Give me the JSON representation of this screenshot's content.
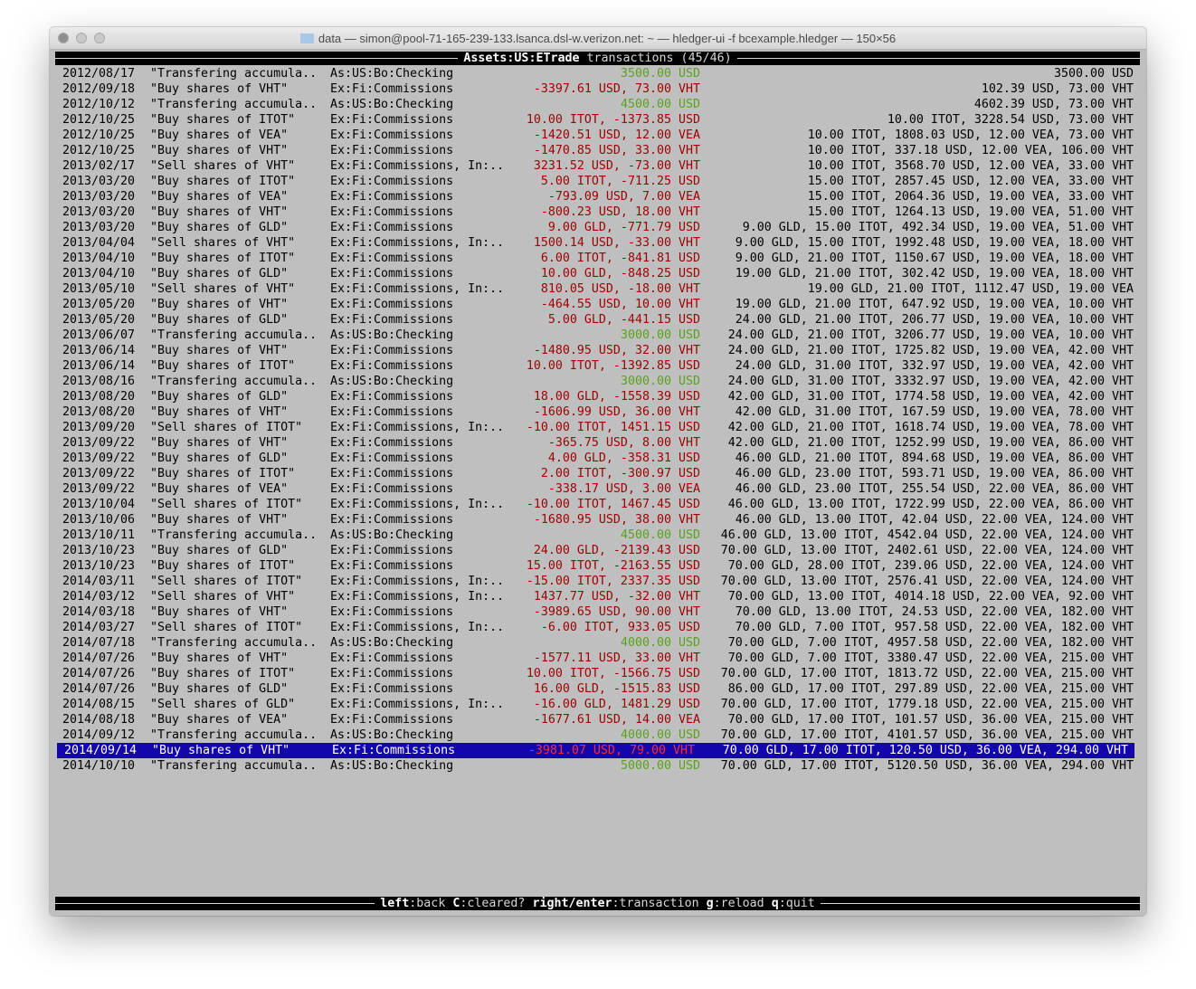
{
  "window": {
    "title": "data — simon@pool-71-165-239-133.lsanca.dsl-w.verizon.net: ~ — hledger-ui -f bcexample.hledger — 150×56",
    "folder_icon": "folder-icon"
  },
  "header": {
    "account": "Assets:US:ETrade",
    "suffix": " transactions (45/46)"
  },
  "colors": {
    "background": "#bfbfbf",
    "increase": "#5aa31c",
    "decrease": "#9e0000",
    "selection": "#1406ad"
  },
  "selected_index": 44,
  "rows": [
    {
      "date": "2012/08/17",
      "desc": "\"Transfering accumula..",
      "account": "As:US:Bo:Checking",
      "amount": "3500.00 USD",
      "sign": "pos",
      "balance": "3500.00 USD"
    },
    {
      "date": "2012/09/18",
      "desc": "\"Buy shares of VHT\"",
      "account": "Ex:Fi:Commissions",
      "amount": "-3397.61 USD, 73.00 VHT",
      "sign": "neg",
      "balance": "102.39 USD, 73.00 VHT"
    },
    {
      "date": "2012/10/12",
      "desc": "\"Transfering accumula..",
      "account": "As:US:Bo:Checking",
      "amount": "4500.00 USD",
      "sign": "pos",
      "balance": "4602.39 USD, 73.00 VHT"
    },
    {
      "date": "2012/10/25",
      "desc": "\"Buy shares of ITOT\"",
      "account": "Ex:Fi:Commissions",
      "amount": "10.00 ITOT, -1373.85 USD",
      "sign": "neg",
      "balance": "10.00 ITOT, 3228.54 USD, 73.00 VHT"
    },
    {
      "date": "2012/10/25",
      "desc": "\"Buy shares of VEA\"",
      "account": "Ex:Fi:Commissions",
      "amount": "-1420.51 USD, 12.00 VEA",
      "sign": "neg",
      "balance": "10.00 ITOT, 1808.03 USD, 12.00 VEA, 73.00 VHT"
    },
    {
      "date": "2012/10/25",
      "desc": "\"Buy shares of VHT\"",
      "account": "Ex:Fi:Commissions",
      "amount": "-1470.85 USD, 33.00 VHT",
      "sign": "neg",
      "balance": "10.00 ITOT, 337.18 USD, 12.00 VEA, 106.00 VHT"
    },
    {
      "date": "2013/02/17",
      "desc": "\"Sell shares of VHT\"",
      "account": "Ex:Fi:Commissions, In:..",
      "amount": "3231.52 USD, -73.00 VHT",
      "sign": "neg",
      "balance": "10.00 ITOT, 3568.70 USD, 12.00 VEA, 33.00 VHT"
    },
    {
      "date": "2013/03/20",
      "desc": "\"Buy shares of ITOT\"",
      "account": "Ex:Fi:Commissions",
      "amount": "5.00 ITOT, -711.25 USD",
      "sign": "neg",
      "balance": "15.00 ITOT, 2857.45 USD, 12.00 VEA, 33.00 VHT"
    },
    {
      "date": "2013/03/20",
      "desc": "\"Buy shares of VEA\"",
      "account": "Ex:Fi:Commissions",
      "amount": "-793.09 USD, 7.00 VEA",
      "sign": "neg",
      "balance": "15.00 ITOT, 2064.36 USD, 19.00 VEA, 33.00 VHT"
    },
    {
      "date": "2013/03/20",
      "desc": "\"Buy shares of VHT\"",
      "account": "Ex:Fi:Commissions",
      "amount": "-800.23 USD, 18.00 VHT",
      "sign": "neg",
      "balance": "15.00 ITOT, 1264.13 USD, 19.00 VEA, 51.00 VHT"
    },
    {
      "date": "2013/03/20",
      "desc": "\"Buy shares of GLD\"",
      "account": "Ex:Fi:Commissions",
      "amount": "9.00 GLD, -771.79 USD",
      "sign": "neg",
      "balance": "9.00 GLD, 15.00 ITOT, 492.34 USD, 19.00 VEA, 51.00 VHT"
    },
    {
      "date": "2013/04/04",
      "desc": "\"Sell shares of VHT\"",
      "account": "Ex:Fi:Commissions, In:..",
      "amount": "1500.14 USD, -33.00 VHT",
      "sign": "neg",
      "balance": "9.00 GLD, 15.00 ITOT, 1992.48 USD, 19.00 VEA, 18.00 VHT"
    },
    {
      "date": "2013/04/10",
      "desc": "\"Buy shares of ITOT\"",
      "account": "Ex:Fi:Commissions",
      "amount": "6.00 ITOT, -841.81 USD",
      "sign": "neg",
      "balance": "9.00 GLD, 21.00 ITOT, 1150.67 USD, 19.00 VEA, 18.00 VHT"
    },
    {
      "date": "2013/04/10",
      "desc": "\"Buy shares of GLD\"",
      "account": "Ex:Fi:Commissions",
      "amount": "10.00 GLD, -848.25 USD",
      "sign": "neg",
      "balance": "19.00 GLD, 21.00 ITOT, 302.42 USD, 19.00 VEA, 18.00 VHT"
    },
    {
      "date": "2013/05/10",
      "desc": "\"Sell shares of VHT\"",
      "account": "Ex:Fi:Commissions, In:..",
      "amount": "810.05 USD, -18.00 VHT",
      "sign": "neg",
      "balance": "19.00 GLD, 21.00 ITOT, 1112.47 USD, 19.00 VEA"
    },
    {
      "date": "2013/05/20",
      "desc": "\"Buy shares of VHT\"",
      "account": "Ex:Fi:Commissions",
      "amount": "-464.55 USD, 10.00 VHT",
      "sign": "neg",
      "balance": "19.00 GLD, 21.00 ITOT, 647.92 USD, 19.00 VEA, 10.00 VHT"
    },
    {
      "date": "2013/05/20",
      "desc": "\"Buy shares of GLD\"",
      "account": "Ex:Fi:Commissions",
      "amount": "5.00 GLD, -441.15 USD",
      "sign": "neg",
      "balance": "24.00 GLD, 21.00 ITOT, 206.77 USD, 19.00 VEA, 10.00 VHT"
    },
    {
      "date": "2013/06/07",
      "desc": "\"Transfering accumula..",
      "account": "As:US:Bo:Checking",
      "amount": "3000.00 USD",
      "sign": "pos",
      "balance": "24.00 GLD, 21.00 ITOT, 3206.77 USD, 19.00 VEA, 10.00 VHT"
    },
    {
      "date": "2013/06/14",
      "desc": "\"Buy shares of VHT\"",
      "account": "Ex:Fi:Commissions",
      "amount": "-1480.95 USD, 32.00 VHT",
      "sign": "neg",
      "balance": "24.00 GLD, 21.00 ITOT, 1725.82 USD, 19.00 VEA, 42.00 VHT"
    },
    {
      "date": "2013/06/14",
      "desc": "\"Buy shares of ITOT\"",
      "account": "Ex:Fi:Commissions",
      "amount": "10.00 ITOT, -1392.85 USD",
      "sign": "neg",
      "balance": "24.00 GLD, 31.00 ITOT, 332.97 USD, 19.00 VEA, 42.00 VHT"
    },
    {
      "date": "2013/08/16",
      "desc": "\"Transfering accumula..",
      "account": "As:US:Bo:Checking",
      "amount": "3000.00 USD",
      "sign": "pos",
      "balance": "24.00 GLD, 31.00 ITOT, 3332.97 USD, 19.00 VEA, 42.00 VHT"
    },
    {
      "date": "2013/08/20",
      "desc": "\"Buy shares of GLD\"",
      "account": "Ex:Fi:Commissions",
      "amount": "18.00 GLD, -1558.39 USD",
      "sign": "neg",
      "balance": "42.00 GLD, 31.00 ITOT, 1774.58 USD, 19.00 VEA, 42.00 VHT"
    },
    {
      "date": "2013/08/20",
      "desc": "\"Buy shares of VHT\"",
      "account": "Ex:Fi:Commissions",
      "amount": "-1606.99 USD, 36.00 VHT",
      "sign": "neg",
      "balance": "42.00 GLD, 31.00 ITOT, 167.59 USD, 19.00 VEA, 78.00 VHT"
    },
    {
      "date": "2013/09/20",
      "desc": "\"Sell shares of ITOT\"",
      "account": "Ex:Fi:Commissions, In:..",
      "amount": "-10.00 ITOT, 1451.15 USD",
      "sign": "neg",
      "balance": "42.00 GLD, 21.00 ITOT, 1618.74 USD, 19.00 VEA, 78.00 VHT"
    },
    {
      "date": "2013/09/22",
      "desc": "\"Buy shares of VHT\"",
      "account": "Ex:Fi:Commissions",
      "amount": "-365.75 USD, 8.00 VHT",
      "sign": "neg",
      "balance": "42.00 GLD, 21.00 ITOT, 1252.99 USD, 19.00 VEA, 86.00 VHT"
    },
    {
      "date": "2013/09/22",
      "desc": "\"Buy shares of GLD\"",
      "account": "Ex:Fi:Commissions",
      "amount": "4.00 GLD, -358.31 USD",
      "sign": "neg",
      "balance": "46.00 GLD, 21.00 ITOT, 894.68 USD, 19.00 VEA, 86.00 VHT"
    },
    {
      "date": "2013/09/22",
      "desc": "\"Buy shares of ITOT\"",
      "account": "Ex:Fi:Commissions",
      "amount": "2.00 ITOT, -300.97 USD",
      "sign": "neg",
      "balance": "46.00 GLD, 23.00 ITOT, 593.71 USD, 19.00 VEA, 86.00 VHT"
    },
    {
      "date": "2013/09/22",
      "desc": "\"Buy shares of VEA\"",
      "account": "Ex:Fi:Commissions",
      "amount": "-338.17 USD, 3.00 VEA",
      "sign": "neg",
      "balance": "46.00 GLD, 23.00 ITOT, 255.54 USD, 22.00 VEA, 86.00 VHT"
    },
    {
      "date": "2013/10/04",
      "desc": "\"Sell shares of ITOT\"",
      "account": "Ex:Fi:Commissions, In:..",
      "amount": "-10.00 ITOT, 1467.45 USD",
      "sign": "neg",
      "balance": "46.00 GLD, 13.00 ITOT, 1722.99 USD, 22.00 VEA, 86.00 VHT"
    },
    {
      "date": "2013/10/06",
      "desc": "\"Buy shares of VHT\"",
      "account": "Ex:Fi:Commissions",
      "amount": "-1680.95 USD, 38.00 VHT",
      "sign": "neg",
      "balance": "46.00 GLD, 13.00 ITOT, 42.04 USD, 22.00 VEA, 124.00 VHT"
    },
    {
      "date": "2013/10/11",
      "desc": "\"Transfering accumula..",
      "account": "As:US:Bo:Checking",
      "amount": "4500.00 USD",
      "sign": "pos",
      "balance": "46.00 GLD, 13.00 ITOT, 4542.04 USD, 22.00 VEA, 124.00 VHT"
    },
    {
      "date": "2013/10/23",
      "desc": "\"Buy shares of GLD\"",
      "account": "Ex:Fi:Commissions",
      "amount": "24.00 GLD, -2139.43 USD",
      "sign": "neg",
      "balance": "70.00 GLD, 13.00 ITOT, 2402.61 USD, 22.00 VEA, 124.00 VHT"
    },
    {
      "date": "2013/10/23",
      "desc": "\"Buy shares of ITOT\"",
      "account": "Ex:Fi:Commissions",
      "amount": "15.00 ITOT, -2163.55 USD",
      "sign": "neg",
      "balance": "70.00 GLD, 28.00 ITOT, 239.06 USD, 22.00 VEA, 124.00 VHT"
    },
    {
      "date": "2014/03/11",
      "desc": "\"Sell shares of ITOT\"",
      "account": "Ex:Fi:Commissions, In:..",
      "amount": "-15.00 ITOT, 2337.35 USD",
      "sign": "neg",
      "balance": "70.00 GLD, 13.00 ITOT, 2576.41 USD, 22.00 VEA, 124.00 VHT"
    },
    {
      "date": "2014/03/12",
      "desc": "\"Sell shares of VHT\"",
      "account": "Ex:Fi:Commissions, In:..",
      "amount": "1437.77 USD, -32.00 VHT",
      "sign": "neg",
      "balance": "70.00 GLD, 13.00 ITOT, 4014.18 USD, 22.00 VEA, 92.00 VHT"
    },
    {
      "date": "2014/03/18",
      "desc": "\"Buy shares of VHT\"",
      "account": "Ex:Fi:Commissions",
      "amount": "-3989.65 USD, 90.00 VHT",
      "sign": "neg",
      "balance": "70.00 GLD, 13.00 ITOT, 24.53 USD, 22.00 VEA, 182.00 VHT"
    },
    {
      "date": "2014/03/27",
      "desc": "\"Sell shares of ITOT\"",
      "account": "Ex:Fi:Commissions, In:..",
      "amount": "-6.00 ITOT, 933.05 USD",
      "sign": "neg",
      "balance": "70.00 GLD, 7.00 ITOT, 957.58 USD, 22.00 VEA, 182.00 VHT"
    },
    {
      "date": "2014/07/18",
      "desc": "\"Transfering accumula..",
      "account": "As:US:Bo:Checking",
      "amount": "4000.00 USD",
      "sign": "pos",
      "balance": "70.00 GLD, 7.00 ITOT, 4957.58 USD, 22.00 VEA, 182.00 VHT"
    },
    {
      "date": "2014/07/26",
      "desc": "\"Buy shares of VHT\"",
      "account": "Ex:Fi:Commissions",
      "amount": "-1577.11 USD, 33.00 VHT",
      "sign": "neg",
      "balance": "70.00 GLD, 7.00 ITOT, 3380.47 USD, 22.00 VEA, 215.00 VHT"
    },
    {
      "date": "2014/07/26",
      "desc": "\"Buy shares of ITOT\"",
      "account": "Ex:Fi:Commissions",
      "amount": "10.00 ITOT, -1566.75 USD",
      "sign": "neg",
      "balance": "70.00 GLD, 17.00 ITOT, 1813.72 USD, 22.00 VEA, 215.00 VHT"
    },
    {
      "date": "2014/07/26",
      "desc": "\"Buy shares of GLD\"",
      "account": "Ex:Fi:Commissions",
      "amount": "16.00 GLD, -1515.83 USD",
      "sign": "neg",
      "balance": "86.00 GLD, 17.00 ITOT, 297.89 USD, 22.00 VEA, 215.00 VHT"
    },
    {
      "date": "2014/08/15",
      "desc": "\"Sell shares of GLD\"",
      "account": "Ex:Fi:Commissions, In:..",
      "amount": "-16.00 GLD, 1481.29 USD",
      "sign": "neg",
      "balance": "70.00 GLD, 17.00 ITOT, 1779.18 USD, 22.00 VEA, 215.00 VHT"
    },
    {
      "date": "2014/08/18",
      "desc": "\"Buy shares of VEA\"",
      "account": "Ex:Fi:Commissions",
      "amount": "-1677.61 USD, 14.00 VEA",
      "sign": "neg",
      "balance": "70.00 GLD, 17.00 ITOT, 101.57 USD, 36.00 VEA, 215.00 VHT"
    },
    {
      "date": "2014/09/12",
      "desc": "\"Transfering accumula..",
      "account": "As:US:Bo:Checking",
      "amount": "4000.00 USD",
      "sign": "pos",
      "balance": "70.00 GLD, 17.00 ITOT, 4101.57 USD, 36.00 VEA, 215.00 VHT"
    },
    {
      "date": "2014/09/14",
      "desc": "\"Buy shares of VHT\"",
      "account": "Ex:Fi:Commissions",
      "amount": "-3981.07 USD, 79.00 VHT",
      "sign": "neg",
      "balance": "70.00 GLD, 17.00 ITOT, 120.50 USD, 36.00 VEA, 294.00 VHT"
    },
    {
      "date": "2014/10/10",
      "desc": "\"Transfering accumula..",
      "account": "As:US:Bo:Checking",
      "amount": "5000.00 USD",
      "sign": "pos",
      "balance": "70.00 GLD, 17.00 ITOT, 5120.50 USD, 36.00 VEA, 294.00 VHT"
    }
  ],
  "footer": {
    "keys": [
      {
        "key": "left",
        "action": "back"
      },
      {
        "key": "C",
        "action": "cleared?"
      },
      {
        "key": "right/enter",
        "action": "transaction"
      },
      {
        "key": "g",
        "action": "reload"
      },
      {
        "key": "q",
        "action": "quit"
      }
    ]
  }
}
